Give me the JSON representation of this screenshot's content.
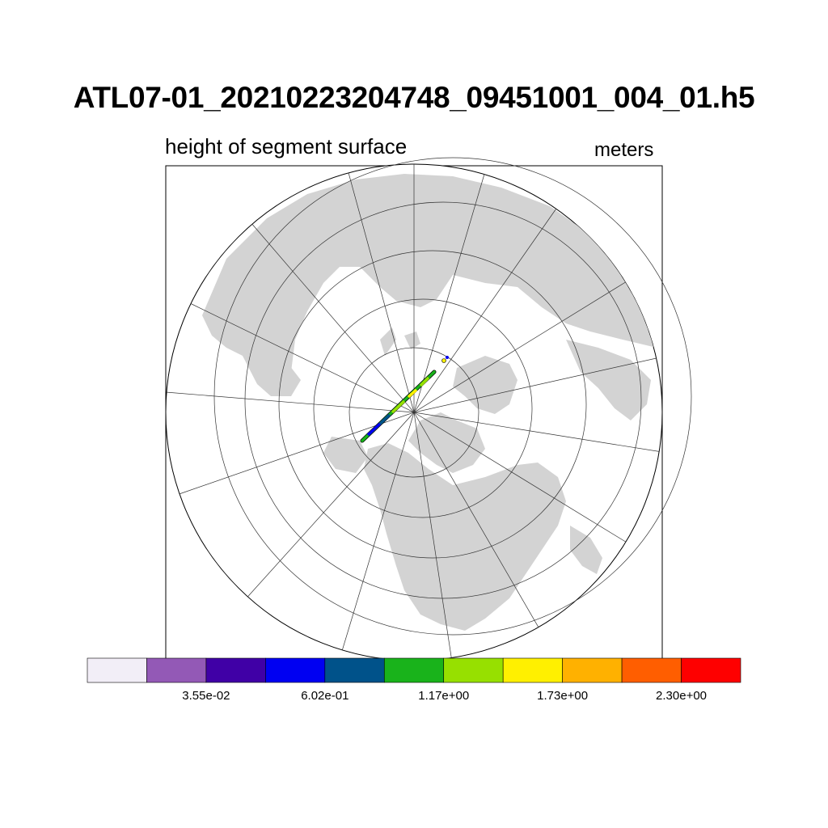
{
  "title": "ATL07-01_20210223204748_09451001_004_01.h5",
  "subtitle_left": "height of segment surface",
  "subtitle_right": "meters",
  "map": {
    "projection": "polar stereographic (north pole)",
    "land_color": "#d3d3d3",
    "ocean_color": "#ffffff",
    "grid_color": "#333333"
  },
  "colorbar": {
    "colors": [
      "#f2eef7",
      "#9359b6",
      "#4000a6",
      "#0000f2",
      "#00528a",
      "#19b31b",
      "#97e000",
      "#fff000",
      "#ffb100",
      "#ff5e00",
      "#fe0000"
    ],
    "labels": [
      "3.55e-02",
      "6.02e-01",
      "1.17e+00",
      "1.73e+00",
      "2.30e+00"
    ]
  },
  "track": {
    "description_values_colors": [
      "#19b31b",
      "#97e000",
      "#0000f2",
      "#00528a",
      "#fff000",
      "#ffb100"
    ]
  }
}
